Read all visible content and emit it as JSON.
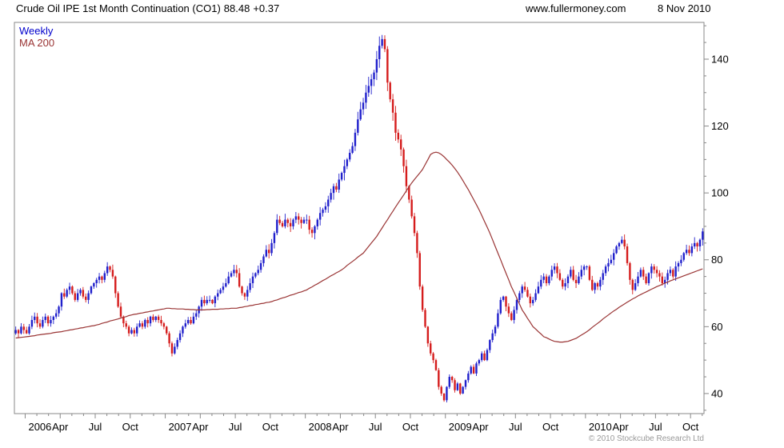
{
  "header": {
    "instrument": "Crude Oil IPE 1st Month Continuation (CO1)",
    "last_price": "88.48",
    "change": "+0.37",
    "website": "www.fullermoney.com",
    "date": "8 Nov 2010"
  },
  "legend": {
    "series1": "Weekly",
    "series2": "MA 200"
  },
  "footer": {
    "copyright": "© 2010 Stockcube Research Ltd"
  },
  "colors": {
    "up": "#2020cc",
    "down": "#d51c1c",
    "ma": "#993333",
    "legend_weekly": "#0000cc",
    "legend_ma": "#993333",
    "frame": "#888888",
    "axis_text": "#000000",
    "copyright_text": "#999999"
  },
  "chart_data": {
    "type": "candlestick",
    "title": "Crude Oil IPE 1st Month Continuation (CO1) 88.48 +0.37",
    "frequency": "Weekly",
    "overlay": "MA 200",
    "last_price": 88.48,
    "change": 0.37,
    "grid": false,
    "legend_position": "top-left",
    "y_axis_side": "right",
    "ylim": [
      34,
      151
    ],
    "yticks": [
      40,
      60,
      80,
      100,
      120,
      140
    ],
    "xticks": [
      {
        "label": "2006",
        "week": 4
      },
      {
        "label": "Apr",
        "week": 17
      },
      {
        "label": "Jul",
        "week": 30
      },
      {
        "label": "Oct",
        "week": 43
      },
      {
        "label": "2007",
        "week": 56
      },
      {
        "label": "Apr",
        "week": 69
      },
      {
        "label": "Jul",
        "week": 82
      },
      {
        "label": "Oct",
        "week": 95
      },
      {
        "label": "2008",
        "week": 108
      },
      {
        "label": "Apr",
        "week": 121
      },
      {
        "label": "Jul",
        "week": 134
      },
      {
        "label": "Oct",
        "week": 147
      },
      {
        "label": "2009",
        "week": 160
      },
      {
        "label": "Apr",
        "week": 173
      },
      {
        "label": "Jul",
        "week": 186
      },
      {
        "label": "Oct",
        "week": 199
      },
      {
        "label": "2010",
        "week": 212
      },
      {
        "label": "Apr",
        "week": 225
      },
      {
        "label": "Jul",
        "week": 238
      },
      {
        "label": "Oct",
        "week": 251
      }
    ],
    "weekly_close": [
      59,
      58,
      60,
      59,
      58,
      60,
      62,
      63,
      61,
      60,
      62,
      63,
      61,
      62,
      63,
      64,
      66,
      70,
      69,
      71,
      72,
      70,
      68,
      70,
      71,
      69,
      68,
      70,
      72,
      73,
      74,
      75,
      74,
      76,
      78,
      77,
      75,
      70,
      66,
      63,
      61,
      60,
      58,
      59,
      58,
      60,
      61,
      60,
      62,
      61,
      63,
      62,
      63,
      62,
      61,
      60,
      58,
      55,
      52,
      54,
      56,
      58,
      60,
      61,
      62,
      61,
      63,
      64,
      66,
      68,
      67,
      68,
      68,
      67,
      69,
      70,
      71,
      72,
      73,
      75,
      76,
      77,
      76,
      72,
      70,
      69,
      71,
      73,
      75,
      76,
      77,
      79,
      81,
      83,
      82,
      85,
      88,
      92,
      91,
      90,
      92,
      91,
      90,
      92,
      93,
      92,
      91,
      92,
      92,
      89,
      88,
      90,
      92,
      94,
      95,
      96,
      98,
      100,
      102,
      101,
      104,
      106,
      108,
      110,
      112,
      114,
      118,
      122,
      125,
      127,
      130,
      132,
      134,
      136,
      140,
      144,
      146,
      143,
      133,
      128,
      124,
      118,
      116,
      113,
      108,
      102,
      98,
      93,
      88,
      82,
      72,
      65,
      60,
      55,
      52,
      50,
      47,
      42,
      40,
      38,
      42,
      45,
      44,
      41,
      43,
      40,
      42,
      44,
      46,
      48,
      46,
      49,
      50,
      52,
      50,
      53,
      56,
      58,
      60,
      64,
      68,
      69,
      66,
      64,
      62,
      65,
      68,
      70,
      72,
      71,
      69,
      67,
      68,
      70,
      72,
      74,
      75,
      73,
      75,
      77,
      78,
      76,
      74,
      72,
      73,
      75,
      77,
      74,
      73,
      75,
      77,
      78,
      78,
      74,
      71,
      73,
      72,
      74,
      76,
      78,
      79,
      80,
      82,
      84,
      85,
      86,
      84,
      79,
      74,
      71,
      73,
      75,
      77,
      75,
      73,
      76,
      78,
      77,
      76,
      75,
      73,
      74,
      76,
      77,
      75,
      78,
      79,
      80,
      82,
      83,
      82,
      84,
      85,
      84,
      86,
      88.48
    ],
    "ma_200": [
      56.6,
      56.7,
      56.8,
      56.9,
      57.0,
      57.1,
      57.2,
      57.3,
      57.5,
      57.6,
      57.7,
      57.8,
      57.9,
      58.0,
      58.2,
      58.3,
      58.4,
      58.5,
      58.7,
      58.8,
      59.0,
      59.1,
      59.3,
      59.4,
      59.6,
      59.7,
      59.9,
      60.0,
      60.2,
      60.3,
      60.5,
      60.7,
      61.0,
      61.2,
      61.4,
      61.7,
      61.9,
      62.1,
      62.3,
      62.6,
      62.8,
      63.0,
      63.3,
      63.5,
      63.7,
      63.8,
      64.0,
      64.1,
      64.3,
      64.4,
      64.6,
      64.7,
      64.9,
      65.0,
      65.2,
      65.3,
      65.5,
      65.5,
      65.4,
      65.4,
      65.3,
      65.3,
      65.3,
      65.2,
      65.2,
      65.1,
      65.1,
      65.0,
      65.0,
      65.0,
      65.0,
      65.1,
      65.1,
      65.2,
      65.2,
      65.2,
      65.3,
      65.3,
      65.4,
      65.4,
      65.5,
      65.5,
      65.5,
      65.7,
      65.8,
      66.0,
      66.1,
      66.3,
      66.4,
      66.6,
      66.7,
      66.9,
      67.0,
      67.2,
      67.3,
      67.5,
      67.8,
      68.0,
      68.3,
      68.6,
      68.8,
      69.1,
      69.4,
      69.6,
      69.9,
      70.2,
      70.4,
      70.7,
      71.0,
      71.5,
      71.9,
      72.4,
      72.8,
      73.3,
      73.8,
      74.2,
      74.7,
      75.2,
      75.6,
      76.1,
      76.5,
      77.0,
      77.6,
      78.3,
      78.9,
      79.5,
      80.1,
      80.8,
      81.4,
      82.0,
      83.0,
      84.0,
      85.0,
      86.0,
      87.0,
      88.3,
      89.5,
      90.8,
      92.0,
      93.3,
      94.5,
      95.8,
      97.0,
      98.2,
      99.4,
      100.6,
      101.8,
      103.0,
      104.0,
      105.0,
      106.0,
      107.0,
      108.5,
      110.0,
      111.5,
      112.0,
      112.2,
      112.0,
      111.5,
      110.8,
      110.0,
      109.2,
      108.3,
      107.3,
      106.2,
      105.0,
      103.7,
      102.3,
      101.0,
      99.5,
      98.0,
      96.5,
      95.0,
      93.3,
      91.5,
      89.8,
      88.0,
      86.0,
      84.0,
      82.0,
      80.0,
      78.0,
      76.0,
      74.0,
      72.0,
      70.3,
      68.5,
      66.8,
      65.0,
      63.8,
      62.5,
      61.3,
      60.0,
      59.3,
      58.5,
      57.8,
      57.0,
      56.7,
      56.3,
      55.9,
      55.6,
      55.5,
      55.4,
      55.4,
      55.5,
      55.6,
      55.9,
      56.2,
      56.5,
      57.0,
      57.5,
      58.0,
      58.5,
      59.1,
      59.8,
      60.4,
      61.0,
      61.6,
      62.3,
      62.9,
      63.5,
      64.1,
      64.7,
      65.2,
      65.8,
      66.3,
      66.8,
      67.3,
      67.8,
      68.3,
      68.7,
      69.2,
      69.6,
      70.0,
      70.4,
      70.8,
      71.2,
      71.6,
      72.0,
      72.3,
      72.7,
      73.0,
      73.3,
      73.7,
      74.0,
      74.3,
      74.6,
      74.9,
      75.2,
      75.5,
      75.8,
      76.1,
      76.4,
      76.7,
      77.0,
      77.3
    ]
  }
}
